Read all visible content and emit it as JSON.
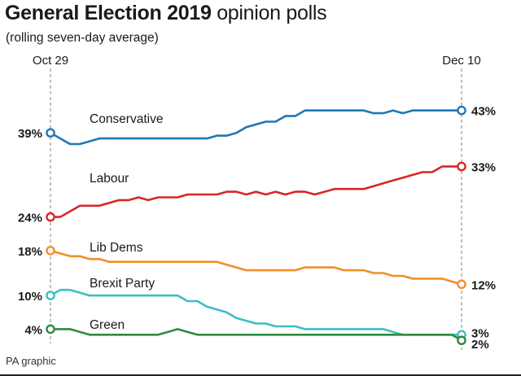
{
  "header": {
    "title_bold": "General Election 2019",
    "title_rest": " opinion polls",
    "subtitle": "(rolling seven-day average)"
  },
  "footer": {
    "credit": "PA graphic"
  },
  "chart_data": {
    "type": "line",
    "title": "General Election 2019 opinion polls",
    "subtitle": "(rolling seven-day average)",
    "x_start_label": "Oct 29",
    "x_end_label": "Dec 10",
    "xlim": [
      0,
      42
    ],
    "ylim": [
      0,
      46
    ],
    "gridlines": false,
    "series": [
      {
        "name": "Conservative",
        "color": "#1f78b4",
        "start_label": "39%",
        "end_label": "43%",
        "x": [
          0,
          1,
          2,
          3,
          4,
          5,
          6,
          7,
          8,
          9,
          10,
          11,
          12,
          13,
          14,
          15,
          16,
          17,
          18,
          19,
          20,
          21,
          22,
          23,
          24,
          25,
          26,
          27,
          28,
          29,
          30,
          31,
          32,
          33,
          34,
          35,
          36,
          37,
          38,
          39,
          40,
          41,
          42
        ],
        "values": [
          39,
          38,
          37,
          37,
          37.5,
          38,
          38,
          38,
          38,
          38,
          38,
          38,
          38,
          38,
          38,
          38,
          38,
          38.5,
          38.5,
          39,
          40,
          40.5,
          41,
          41,
          42,
          42,
          43,
          43,
          43,
          43,
          43,
          43,
          43,
          42.5,
          42.5,
          43,
          42.5,
          43,
          43,
          43,
          43,
          43,
          43
        ]
      },
      {
        "name": "Labour",
        "color": "#d62728",
        "start_label": "24%",
        "end_label": "33%",
        "x": [
          0,
          1,
          2,
          3,
          4,
          5,
          6,
          7,
          8,
          9,
          10,
          11,
          12,
          13,
          14,
          15,
          16,
          17,
          18,
          19,
          20,
          21,
          22,
          23,
          24,
          25,
          26,
          27,
          28,
          29,
          30,
          31,
          32,
          33,
          34,
          35,
          36,
          37,
          38,
          39,
          40,
          41,
          42
        ],
        "values": [
          24,
          24,
          25,
          26,
          26,
          26,
          26.5,
          27,
          27,
          27.5,
          27,
          27.5,
          27.5,
          27.5,
          28,
          28,
          28,
          28,
          28.5,
          28.5,
          28,
          28.5,
          28,
          28.5,
          28,
          28.5,
          28.5,
          28,
          28.5,
          29,
          29,
          29,
          29,
          29.5,
          30,
          30.5,
          31,
          31.5,
          32,
          32,
          33,
          33,
          33
        ]
      },
      {
        "name": "Lib Dems",
        "color": "#f28e2b",
        "start_label": "18%",
        "end_label": "12%",
        "x": [
          0,
          1,
          2,
          3,
          4,
          5,
          6,
          7,
          8,
          9,
          10,
          11,
          12,
          13,
          14,
          15,
          16,
          17,
          18,
          19,
          20,
          21,
          22,
          23,
          24,
          25,
          26,
          27,
          28,
          29,
          30,
          31,
          32,
          33,
          34,
          35,
          36,
          37,
          38,
          39,
          40,
          41,
          42
        ],
        "values": [
          18,
          17.5,
          17,
          17,
          16.5,
          16.5,
          16,
          16,
          16,
          16,
          16,
          16,
          16,
          16,
          16,
          16,
          16,
          16,
          15.5,
          15,
          14.5,
          14.5,
          14.5,
          14.5,
          14.5,
          14.5,
          15,
          15,
          15,
          15,
          14.5,
          14.5,
          14.5,
          14,
          14,
          13.5,
          13.5,
          13,
          13,
          13,
          13,
          12.5,
          12
        ]
      },
      {
        "name": "Brexit Party",
        "color": "#3cbfc4",
        "start_label": "10%",
        "end_label": "3%",
        "x": [
          0,
          1,
          2,
          3,
          4,
          5,
          6,
          7,
          8,
          9,
          10,
          11,
          12,
          13,
          14,
          15,
          16,
          17,
          18,
          19,
          20,
          21,
          22,
          23,
          24,
          25,
          26,
          27,
          28,
          29,
          30,
          31,
          32,
          33,
          34,
          35,
          36,
          37,
          38,
          39,
          40,
          41,
          42
        ],
        "values": [
          10,
          11,
          11,
          10.5,
          10,
          10,
          10,
          10,
          10,
          10,
          10,
          10,
          10,
          10,
          9,
          9,
          8,
          7.5,
          7,
          6,
          5.5,
          5,
          5,
          4.5,
          4.5,
          4.5,
          4,
          4,
          4,
          4,
          4,
          4,
          4,
          4,
          4,
          3.5,
          3,
          3,
          3,
          3,
          3,
          3,
          3
        ]
      },
      {
        "name": "Green",
        "color": "#2e8b3e",
        "start_label": "4%",
        "end_label": "2%",
        "x": [
          0,
          1,
          2,
          3,
          4,
          5,
          6,
          7,
          8,
          9,
          10,
          11,
          12,
          13,
          14,
          15,
          16,
          17,
          18,
          19,
          20,
          21,
          22,
          23,
          24,
          25,
          26,
          27,
          28,
          29,
          30,
          31,
          32,
          33,
          34,
          35,
          36,
          37,
          38,
          39,
          40,
          41,
          42
        ],
        "values": [
          4,
          4,
          4,
          3.5,
          3,
          3,
          3,
          3,
          3,
          3,
          3,
          3,
          3.5,
          4,
          3.5,
          3,
          3,
          3,
          3,
          3,
          3,
          3,
          3,
          3,
          3,
          3,
          3,
          3,
          3,
          3,
          3,
          3,
          3,
          3,
          3,
          3,
          3,
          3,
          3,
          3,
          3,
          3,
          2
        ]
      }
    ]
  }
}
